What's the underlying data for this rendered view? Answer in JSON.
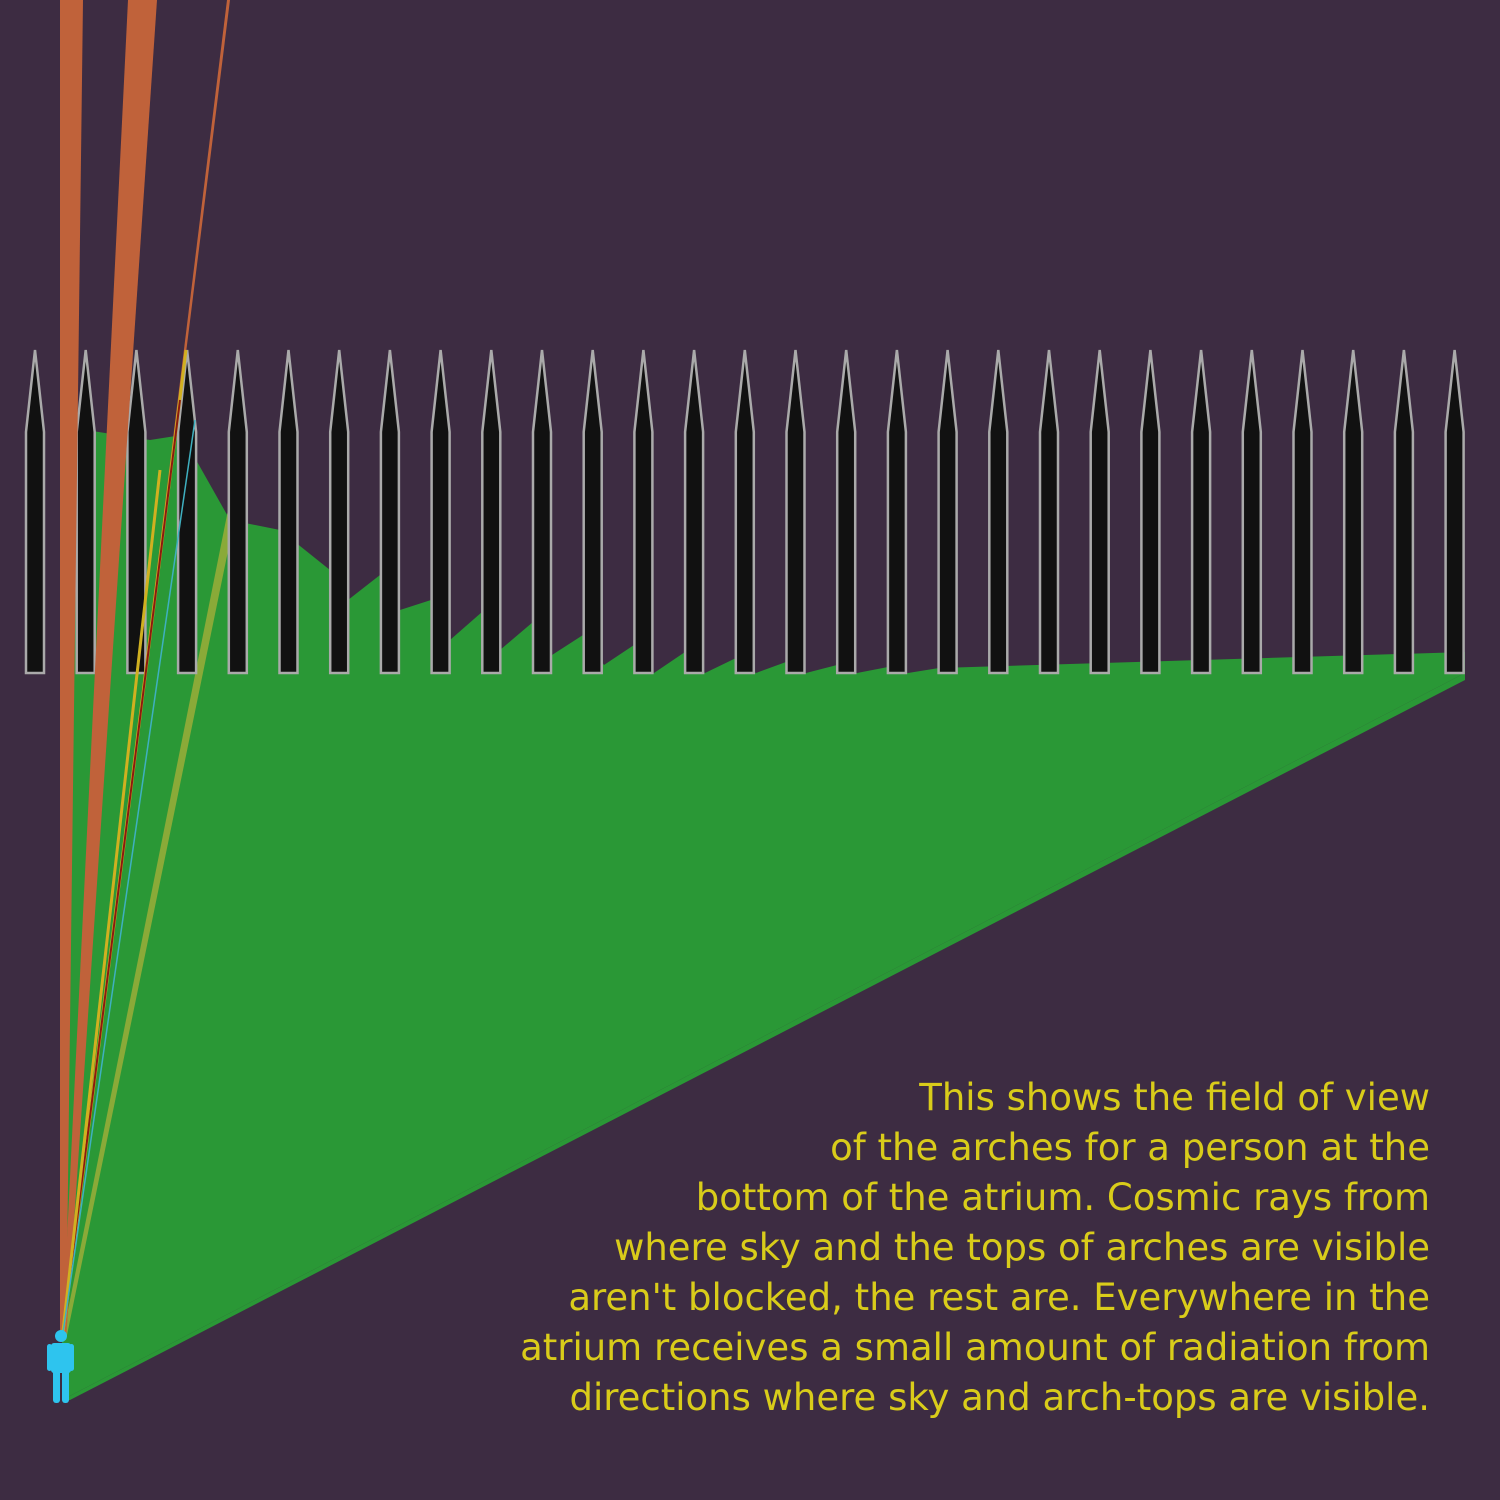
{
  "colors": {
    "background": "#3d2c42",
    "field_of_view": "#2a9836",
    "arch_fill": "#111111",
    "arch_stroke": "#aaaaaa",
    "sky_rays": "#c0623a",
    "person": "#2ec4ee",
    "caption_text": "#d9cc1a"
  },
  "diagram": {
    "arch_count": 29,
    "elements": [
      "person-icon",
      "arches",
      "field-of-view",
      "sky-rays"
    ]
  },
  "caption": {
    "lines": [
      "This shows the field of view",
      "of the arches for a person at the",
      "bottom of the atrium. Cosmic rays from",
      "where sky and the tops of arches are visible",
      "aren't blocked, the rest are. Everywhere in the",
      "atrium receives a small amount of radiation from",
      "directions where sky and arch-tops are visible."
    ]
  }
}
